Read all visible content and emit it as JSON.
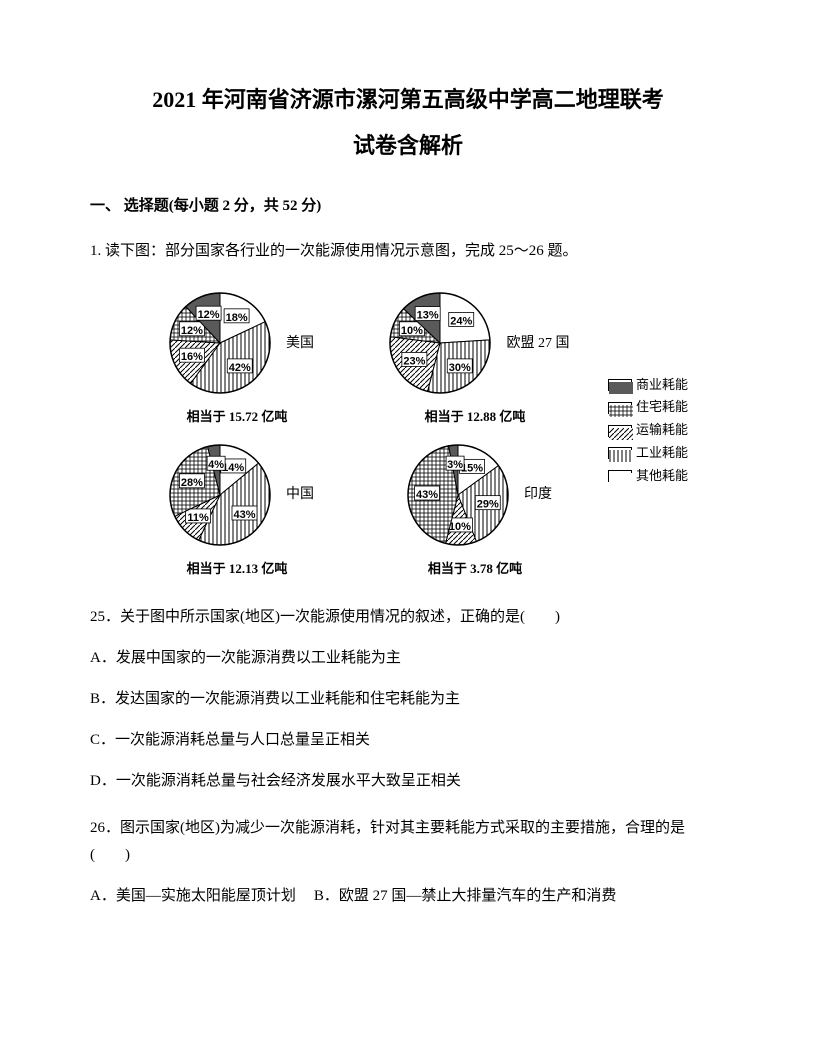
{
  "title_line1": "2021 年河南省济源市漯河第五高级中学高二地理联考",
  "title_line2": "试卷含解析",
  "section1": "一、 选择题(每小题 2 分，共 52 分)",
  "q1_intro": "1. 读下图：部分国家各行业的一次能源使用情况示意图，完成 25～26 题。",
  "legend_items": [
    {
      "label": "商业耗能",
      "pattern": "solid"
    },
    {
      "label": "住宅耗能",
      "pattern": "grid"
    },
    {
      "label": "运输耗能",
      "pattern": "diag"
    },
    {
      "label": "工业耗能",
      "pattern": "vert"
    },
    {
      "label": "其他耗能",
      "pattern": "blank"
    }
  ],
  "charts": {
    "usa": {
      "name": "美国",
      "caption": "相当于 15.72 亿吨",
      "slices": [
        {
          "label": "18%",
          "value": 18,
          "pattern": "blank"
        },
        {
          "label": "42%",
          "value": 42,
          "pattern": "vert"
        },
        {
          "label": "16%",
          "value": 16,
          "pattern": "diag"
        },
        {
          "label": "12%",
          "value": 12,
          "pattern": "grid"
        },
        {
          "label": "12%",
          "value": 12,
          "pattern": "solid"
        }
      ]
    },
    "eu": {
      "name": "欧盟 27 国",
      "caption": "相当于 12.88 亿吨",
      "slices": [
        {
          "label": "24%",
          "value": 24,
          "pattern": "blank"
        },
        {
          "label": "30%",
          "value": 30,
          "pattern": "vert"
        },
        {
          "label": "23%",
          "value": 23,
          "pattern": "diag"
        },
        {
          "label": "10%",
          "value": 10,
          "pattern": "grid"
        },
        {
          "label": "13%",
          "value": 13,
          "pattern": "solid"
        }
      ]
    },
    "china": {
      "name": "中国",
      "caption": "相当于 12.13 亿吨",
      "slices": [
        {
          "label": "14%",
          "value": 14,
          "pattern": "blank"
        },
        {
          "label": "43%",
          "value": 43,
          "pattern": "vert"
        },
        {
          "label": "11%",
          "value": 11,
          "pattern": "diag"
        },
        {
          "label": "28%",
          "value": 28,
          "pattern": "grid"
        },
        {
          "label": "4%",
          "value": 4,
          "pattern": "solid"
        }
      ]
    },
    "india": {
      "name": "印度",
      "caption": "相当于 3.78 亿吨",
      "slices": [
        {
          "label": "15%",
          "value": 15,
          "pattern": "blank"
        },
        {
          "label": "29%",
          "value": 29,
          "pattern": "vert"
        },
        {
          "label": "10%",
          "value": 10,
          "pattern": "diag"
        },
        {
          "label": "43%",
          "value": 43,
          "pattern": "grid"
        },
        {
          "label": "3%",
          "value": 3,
          "pattern": "solid"
        }
      ]
    }
  },
  "q25": "25．关于图中所示国家(地区)一次能源使用情况的叙述，正确的是(　　)",
  "q25_a": "A．发展中国家的一次能源消费以工业耗能为主",
  "q25_b": "B．发达国家的一次能源消费以工业耗能和住宅耗能为主",
  "q25_c": "C．一次能源消耗总量与人口总量呈正相关",
  "q25_d": "D．一次能源消耗总量与社会经济发展水平大致呈正相关",
  "q26": "26．图示国家(地区)为减少一次能源消耗，针对其主要耗能方式采取的主要措施，合理的是 (　　)",
  "q26_a": "A．美国—实施太阳能屋顶计划",
  "q26_b": "B．欧盟 27 国—禁止大排量汽车的生产和消费",
  "chart_style": {
    "radius": 50,
    "stroke": "#000000",
    "label_fontsize": 11,
    "label_fontweight": "bold",
    "patterns": {
      "solid": "#5a5a5a",
      "grid": "grid",
      "diag": "diag",
      "vert": "vert",
      "blank": "#ffffff"
    }
  }
}
